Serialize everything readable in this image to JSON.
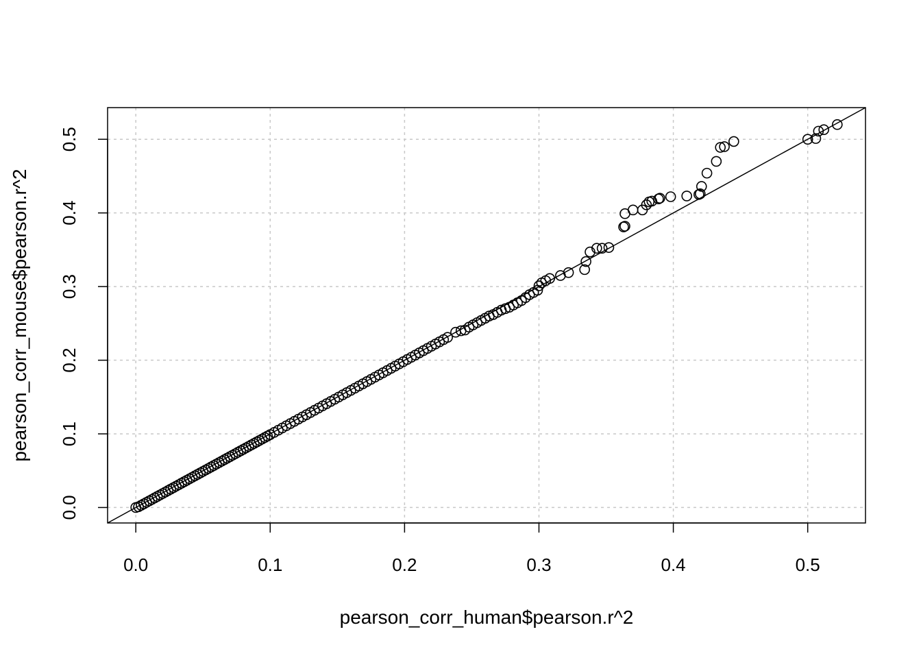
{
  "chart_data": {
    "type": "scatter",
    "xlabel": "pearson_corr_human$pearson.r^2",
    "ylabel": "pearson_corr_mouse$pearson.r^2",
    "xlim": [
      -0.021,
      0.543
    ],
    "ylim": [
      -0.021,
      0.543
    ],
    "xticks": [
      0.0,
      0.1,
      0.2,
      0.3,
      0.4,
      0.5
    ],
    "yticks": [
      0.0,
      0.1,
      0.2,
      0.3,
      0.4,
      0.5
    ],
    "xtick_labels": [
      "0.0",
      "0.1",
      "0.2",
      "0.3",
      "0.4",
      "0.5"
    ],
    "ytick_labels": [
      "0.0",
      "0.1",
      "0.2",
      "0.3",
      "0.4",
      "0.5"
    ],
    "grid": true,
    "reference_line": {
      "type": "identity",
      "slope": 1,
      "intercept": 0
    },
    "marker": "open-circle",
    "series": [
      {
        "points": [
          [
            0.0,
            0.0
          ],
          [
            0.002,
            0.001
          ],
          [
            0.004,
            0.003
          ],
          [
            0.006,
            0.005
          ],
          [
            0.008,
            0.007
          ],
          [
            0.01,
            0.009
          ],
          [
            0.012,
            0.011
          ],
          [
            0.014,
            0.013
          ],
          [
            0.016,
            0.015
          ],
          [
            0.018,
            0.017
          ],
          [
            0.02,
            0.019
          ],
          [
            0.022,
            0.021
          ],
          [
            0.024,
            0.023
          ],
          [
            0.026,
            0.025
          ],
          [
            0.028,
            0.027
          ],
          [
            0.03,
            0.029
          ],
          [
            0.032,
            0.031
          ],
          [
            0.034,
            0.033
          ],
          [
            0.036,
            0.035
          ],
          [
            0.038,
            0.037
          ],
          [
            0.04,
            0.039
          ],
          [
            0.042,
            0.041
          ],
          [
            0.044,
            0.043
          ],
          [
            0.046,
            0.045
          ],
          [
            0.048,
            0.047
          ],
          [
            0.05,
            0.049
          ],
          [
            0.052,
            0.051
          ],
          [
            0.054,
            0.053
          ],
          [
            0.056,
            0.055
          ],
          [
            0.058,
            0.057
          ],
          [
            0.06,
            0.059
          ],
          [
            0.062,
            0.061
          ],
          [
            0.064,
            0.063
          ],
          [
            0.066,
            0.065
          ],
          [
            0.068,
            0.067
          ],
          [
            0.07,
            0.069
          ],
          [
            0.072,
            0.071
          ],
          [
            0.074,
            0.073
          ],
          [
            0.076,
            0.075
          ],
          [
            0.078,
            0.077
          ],
          [
            0.08,
            0.079
          ],
          [
            0.082,
            0.081
          ],
          [
            0.084,
            0.083
          ],
          [
            0.086,
            0.085
          ],
          [
            0.088,
            0.087
          ],
          [
            0.09,
            0.089
          ],
          [
            0.092,
            0.091
          ],
          [
            0.094,
            0.093
          ],
          [
            0.096,
            0.095
          ],
          [
            0.098,
            0.097
          ],
          [
            0.1,
            0.099
          ],
          [
            0.103,
            0.102
          ],
          [
            0.106,
            0.105
          ],
          [
            0.109,
            0.108
          ],
          [
            0.112,
            0.111
          ],
          [
            0.115,
            0.114
          ],
          [
            0.118,
            0.117
          ],
          [
            0.121,
            0.12
          ],
          [
            0.124,
            0.123
          ],
          [
            0.127,
            0.126
          ],
          [
            0.13,
            0.129
          ],
          [
            0.133,
            0.132
          ],
          [
            0.136,
            0.135
          ],
          [
            0.139,
            0.138
          ],
          [
            0.142,
            0.141
          ],
          [
            0.145,
            0.144
          ],
          [
            0.148,
            0.147
          ],
          [
            0.151,
            0.15
          ],
          [
            0.154,
            0.153
          ],
          [
            0.157,
            0.156
          ],
          [
            0.16,
            0.159
          ],
          [
            0.163,
            0.162
          ],
          [
            0.166,
            0.165
          ],
          [
            0.169,
            0.168
          ],
          [
            0.172,
            0.171
          ],
          [
            0.175,
            0.174
          ],
          [
            0.178,
            0.177
          ],
          [
            0.181,
            0.18
          ],
          [
            0.184,
            0.183
          ],
          [
            0.187,
            0.186
          ],
          [
            0.19,
            0.189
          ],
          [
            0.193,
            0.192
          ],
          [
            0.196,
            0.195
          ],
          [
            0.199,
            0.198
          ],
          [
            0.202,
            0.201
          ],
          [
            0.205,
            0.204
          ],
          [
            0.208,
            0.207
          ],
          [
            0.211,
            0.21
          ],
          [
            0.214,
            0.213
          ],
          [
            0.217,
            0.216
          ],
          [
            0.22,
            0.219
          ],
          [
            0.223,
            0.222
          ],
          [
            0.226,
            0.225
          ],
          [
            0.229,
            0.228
          ],
          [
            0.232,
            0.231
          ],
          [
            0.238,
            0.238
          ],
          [
            0.242,
            0.24
          ],
          [
            0.245,
            0.241
          ],
          [
            0.248,
            0.245
          ],
          [
            0.251,
            0.248
          ],
          [
            0.254,
            0.251
          ],
          [
            0.257,
            0.254
          ],
          [
            0.26,
            0.257
          ],
          [
            0.263,
            0.26
          ],
          [
            0.266,
            0.262
          ],
          [
            0.269,
            0.265
          ],
          [
            0.272,
            0.268
          ],
          [
            0.275,
            0.27
          ],
          [
            0.278,
            0.272
          ],
          [
            0.281,
            0.275
          ],
          [
            0.284,
            0.278
          ],
          [
            0.287,
            0.281
          ],
          [
            0.29,
            0.285
          ],
          [
            0.293,
            0.289
          ],
          [
            0.296,
            0.292
          ],
          [
            0.299,
            0.295
          ],
          [
            0.3,
            0.301
          ],
          [
            0.302,
            0.305
          ],
          [
            0.305,
            0.308
          ],
          [
            0.308,
            0.311
          ],
          [
            0.316,
            0.315
          ],
          [
            0.322,
            0.319
          ],
          [
            0.334,
            0.323
          ],
          [
            0.335,
            0.334
          ],
          [
            0.338,
            0.347
          ],
          [
            0.343,
            0.352
          ],
          [
            0.347,
            0.352
          ],
          [
            0.352,
            0.353
          ],
          [
            0.363,
            0.381
          ],
          [
            0.364,
            0.382
          ],
          [
            0.364,
            0.399
          ],
          [
            0.37,
            0.404
          ],
          [
            0.377,
            0.404
          ],
          [
            0.38,
            0.411
          ],
          [
            0.382,
            0.415
          ],
          [
            0.384,
            0.416
          ],
          [
            0.389,
            0.419
          ],
          [
            0.39,
            0.42
          ],
          [
            0.398,
            0.422
          ],
          [
            0.41,
            0.423
          ],
          [
            0.419,
            0.425
          ],
          [
            0.42,
            0.426
          ],
          [
            0.421,
            0.436
          ],
          [
            0.425,
            0.454
          ],
          [
            0.432,
            0.47
          ],
          [
            0.435,
            0.489
          ],
          [
            0.438,
            0.49
          ],
          [
            0.445,
            0.497
          ],
          [
            0.5,
            0.5
          ],
          [
            0.506,
            0.501
          ],
          [
            0.508,
            0.511
          ],
          [
            0.512,
            0.513
          ],
          [
            0.522,
            0.52
          ]
        ]
      }
    ]
  }
}
